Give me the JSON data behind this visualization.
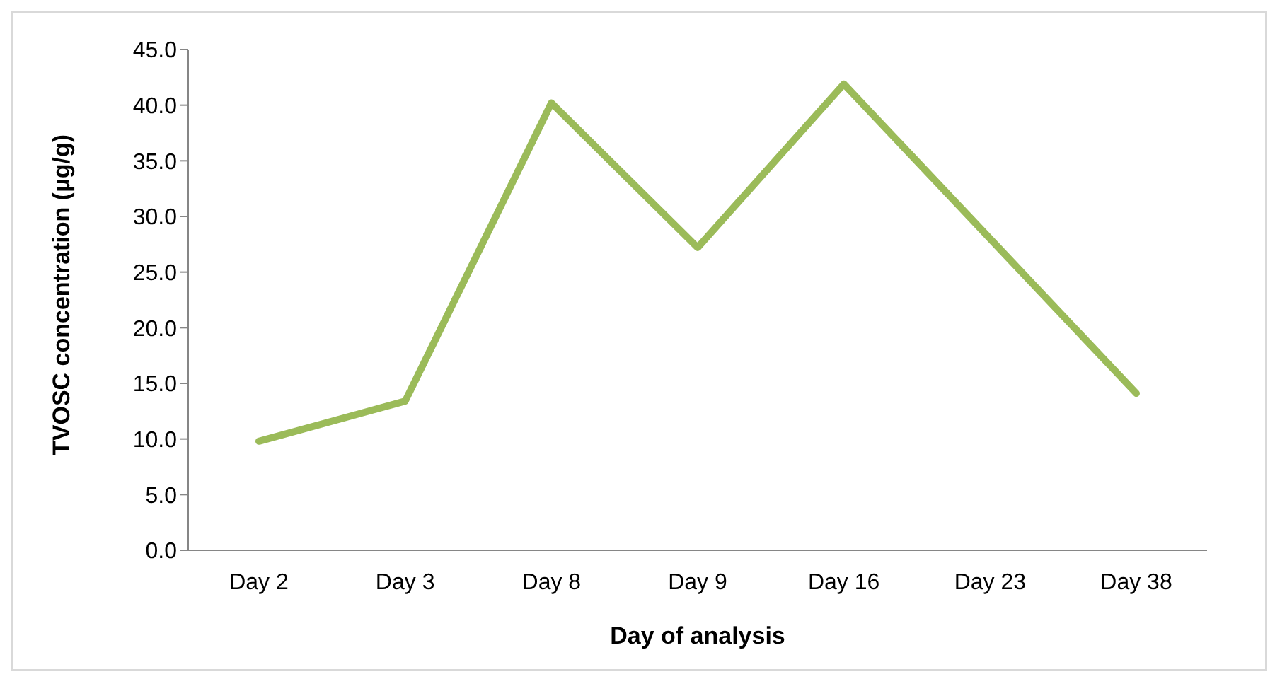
{
  "chart_data": {
    "type": "line",
    "xlabel": "Day of analysis",
    "ylabel": "TVOSC concentration (µg/g)",
    "categories": [
      "Day 2",
      "Day 3",
      "Day 8",
      "Day 9",
      "Day 16",
      "Day 23",
      "Day 38"
    ],
    "series": [
      {
        "color": "#9bbb59",
        "values": [
          9.8,
          13.4,
          40.2,
          27.2,
          41.9,
          28.0,
          14.1
        ]
      }
    ],
    "ylim": [
      0,
      45
    ],
    "yticks": [
      {
        "value": 0,
        "label": "0.0"
      },
      {
        "value": 5,
        "label": "5.0"
      },
      {
        "value": 10,
        "label": "10.0"
      },
      {
        "value": 15,
        "label": "15.0"
      },
      {
        "value": 20,
        "label": "20.0"
      },
      {
        "value": 25,
        "label": "25.0"
      },
      {
        "value": 30,
        "label": "30.0"
      },
      {
        "value": 35,
        "label": "35.0"
      },
      {
        "value": 40,
        "label": "40.0"
      },
      {
        "value": 45,
        "label": "45.0"
      }
    ],
    "grid": false,
    "marker": "none",
    "line_style": "solid"
  }
}
